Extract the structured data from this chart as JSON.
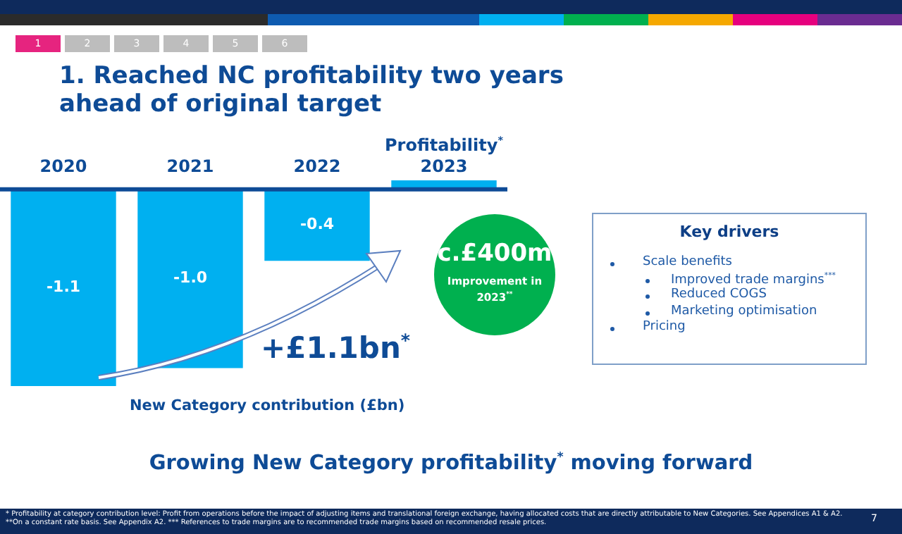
{
  "chart_data": {
    "type": "bar",
    "title": "1. Reached NC profitability two years ahead of original target",
    "subtitle": "Growing New Category profitability$^{*}$ moving forward",
    "xlabel": "New Category contribution (£bn)",
    "categories": [
      "2020",
      "2021",
      "2022",
      "Profitability$^{*}$ 2023"
    ],
    "values": [
      -1.1,
      -1.0,
      -0.4,
      0.05
    ],
    "value_labels": [
      "-1.1",
      "-1.0",
      "-0.4",
      null
    ],
    "color": "#00b0f0",
    "annotations": [
      "1",
      "2",
      "3",
      "4",
      "5",
      "6",
      "+£1.1bn$^{*}$",
      "c.£400m",
      "Improvement in 2023$^{**}$",
      "Key drivers",
      "Scale benefits",
      "Improved trade margins$^{***}$",
      "Reduced COGS",
      "Marketing optimisation",
      "Pricing",
      "* Profitability at category contribution level: Profit from operations before the impact of adjusting items and translational foreign exchange, having allocated costs that are directly attributable to New Categories. See Appendices A1 & A2.",
      "**On a constant rate basis. See Appendix A2. *** References to trade margins are to recommended trade margins based on recommended resale prices.",
      "7"
    ],
    "legend": false,
    "grid": false
  }
}
